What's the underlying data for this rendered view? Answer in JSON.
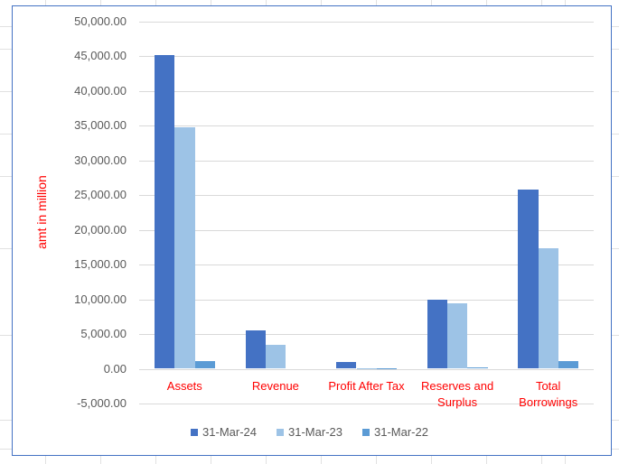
{
  "chart_data": {
    "type": "bar",
    "title": "",
    "xlabel": "",
    "ylabel": "amt in million",
    "ylim": [
      -5000,
      50000
    ],
    "y_ticks": [
      "50,000.00",
      "45,000.00",
      "40,000.00",
      "35,000.00",
      "30,000.00",
      "25,000.00",
      "20,000.00",
      "15,000.00",
      "10,000.00",
      "5,000.00",
      "0.00",
      "-5,000.00"
    ],
    "y_tick_values": [
      50000,
      45000,
      40000,
      35000,
      30000,
      25000,
      20000,
      15000,
      10000,
      5000,
      0,
      -5000
    ],
    "categories": [
      "Assets",
      "Revenue",
      "Profit After Tax",
      "Reserves and Surplus",
      "Total Borrowings"
    ],
    "category_lines": [
      [
        "Assets"
      ],
      [
        "Revenue"
      ],
      [
        "Profit After Tax"
      ],
      [
        "Reserves and",
        "Surplus"
      ],
      [
        "Total",
        "Borrowings"
      ]
    ],
    "series": [
      {
        "name": "31-Mar-24",
        "color": "#4472c4",
        "values": [
          45100,
          5570,
          950,
          9970,
          25780
        ]
      },
      {
        "name": "31-Mar-23",
        "color": "#9dc3e6",
        "values": [
          34800,
          3500,
          60,
          9450,
          17360
        ]
      },
      {
        "name": "31-Mar-22",
        "color": "#5b9bd5",
        "values": [
          1040,
          0,
          90,
          130,
          1040
        ]
      }
    ],
    "grid": true,
    "legend_position": "bottom",
    "colors": {
      "axis_text": "#595959",
      "category_text": "#ff0000",
      "ylabel_text": "#ff0000",
      "gridline": "#d9d9d9",
      "frame": "#4472c4"
    }
  }
}
